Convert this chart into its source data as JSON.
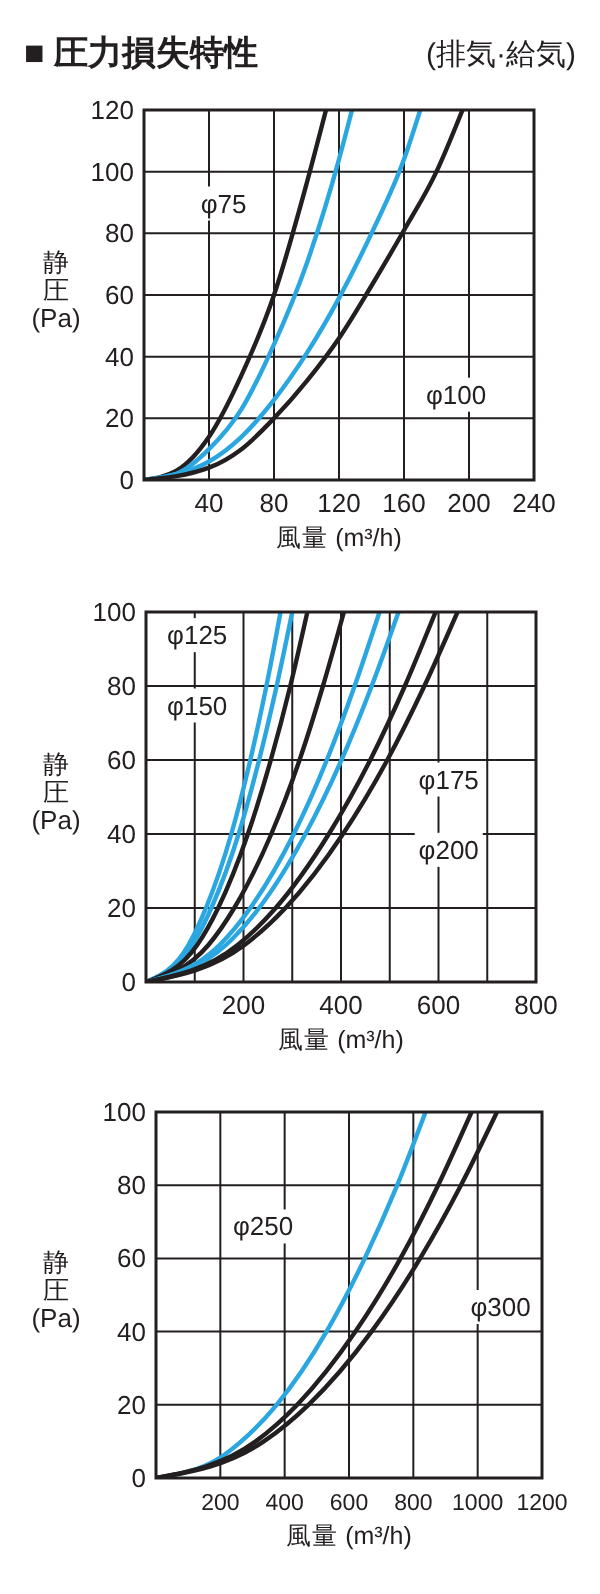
{
  "chart_data": [
    {
      "type": "line",
      "title": "■ 圧力損失特性",
      "subtitle": "(排気·給気)",
      "xlabel": "風量 (m³/h)",
      "ylabel": "静圧(Pa)",
      "xlim": [
        0,
        240
      ],
      "ylim": [
        0,
        120
      ],
      "xticks": [
        40,
        80,
        120,
        160,
        200,
        240
      ],
      "yticks": [
        0,
        20,
        40,
        60,
        80,
        100,
        120
      ],
      "grid": true,
      "marker": "none",
      "series": [
        {
          "color": "#231f20",
          "x": [
            0,
            20,
            40,
            60,
            80,
            100,
            112
          ],
          "values": [
            0,
            3,
            14,
            34,
            60,
            96,
            120
          ]
        },
        {
          "color": "#2aa6e0",
          "x": [
            0,
            20,
            40,
            60,
            80,
            100,
            120,
            128
          ],
          "values": [
            0,
            2,
            10,
            23,
            44,
            70,
            104,
            120
          ]
        },
        {
          "color": "#2aa6e0",
          "x": [
            0,
            40,
            60,
            80,
            100,
            120,
            140,
            160,
            170
          ],
          "values": [
            0,
            6,
            14,
            26,
            41,
            59,
            80,
            104,
            120
          ]
        },
        {
          "color": "#231f20",
          "x": [
            0,
            40,
            60,
            80,
            100,
            120,
            140,
            160,
            180,
            196
          ],
          "values": [
            0,
            4,
            10,
            20,
            32,
            46,
            63,
            81,
            100,
            120
          ]
        }
      ],
      "annotations": [
        {
          "text": "φ75",
          "x": 49,
          "y": 90
        },
        {
          "text": "φ100",
          "x": 192,
          "y": 28
        }
      ]
    },
    {
      "type": "line",
      "xlabel": "風量 (m³/h)",
      "ylabel": "静圧(Pa)",
      "xlim": [
        0,
        800
      ],
      "ylim": [
        0,
        100
      ],
      "xticks": [
        {
          "value": 100,
          "label": null
        },
        200,
        {
          "value": 300,
          "label": null
        },
        400,
        {
          "value": 500,
          "label": null
        },
        600,
        {
          "value": 700,
          "label": null
        },
        800
      ],
      "yticks": [
        0,
        20,
        40,
        60,
        80,
        100
      ],
      "grid": true,
      "marker": "none",
      "series": [
        {
          "color": "#2aa6e0",
          "x": [
            0,
            87,
            123,
            175,
            214,
            247,
            276
          ],
          "values": [
            0,
            10,
            20,
            40,
            60,
            80,
            100
          ]
        },
        {
          "color": "#2aa6e0",
          "x": [
            0,
            95,
            134,
            190,
            232,
            268,
            300
          ],
          "values": [
            0,
            10,
            20,
            40,
            60,
            80,
            100
          ]
        },
        {
          "color": "#231f20",
          "x": [
            0,
            105,
            148,
            209,
            256,
            296,
            331
          ],
          "values": [
            0,
            10,
            20,
            40,
            60,
            80,
            100
          ]
        },
        {
          "color": "#231f20",
          "x": [
            0,
            128,
            181,
            257,
            315,
            363,
            406
          ],
          "values": [
            0,
            10,
            20,
            40,
            60,
            80,
            100
          ]
        },
        {
          "color": "#2aa6e0",
          "x": [
            0,
            151,
            214,
            303,
            371,
            428,
            479
          ],
          "values": [
            0,
            10,
            20,
            40,
            60,
            80,
            100
          ]
        },
        {
          "color": "#2aa6e0",
          "x": [
            0,
            164,
            232,
            327,
            401,
            463,
            518
          ],
          "values": [
            0,
            10,
            20,
            40,
            60,
            80,
            100
          ]
        },
        {
          "color": "#231f20",
          "x": [
            0,
            188,
            266,
            375,
            460,
            531,
            594
          ],
          "values": [
            0,
            10,
            20,
            40,
            60,
            80,
            100
          ]
        },
        {
          "color": "#231f20",
          "x": [
            0,
            202,
            286,
            404,
            495,
            571,
            639
          ],
          "values": [
            0,
            10,
            20,
            40,
            60,
            80,
            100
          ]
        }
      ],
      "annotations": [
        {
          "text": "φ125",
          "x": 105,
          "y": 94
        },
        {
          "text": "φ150",
          "x": 105,
          "y": 75
        },
        {
          "text": "φ175",
          "x": 621,
          "y": 55
        },
        {
          "text": "φ200",
          "x": 621,
          "y": 36
        }
      ]
    },
    {
      "type": "line",
      "xlabel": "風量 (m³/h)",
      "ylabel": "静圧(Pa)",
      "xlim": [
        0,
        1200
      ],
      "ylim": [
        0,
        100
      ],
      "xticks": [
        200,
        400,
        600,
        800,
        1000,
        1200
      ],
      "yticks": [
        0,
        20,
        40,
        60,
        80,
        100
      ],
      "grid": true,
      "marker": "none",
      "series": [
        {
          "color": "#2aa6e0",
          "x": [
            0,
            200,
            265,
            375,
            530,
            649,
            750,
            838
          ],
          "values": [
            0,
            5.6,
            10,
            20,
            40,
            60,
            80,
            100
          ]
        },
        {
          "color": "#231f20",
          "x": [
            0,
            310,
            439,
            620,
            760,
            877,
            981
          ],
          "values": [
            0,
            10,
            20,
            40,
            60,
            80,
            100
          ]
        },
        {
          "color": "#231f20",
          "x": [
            0,
            335,
            474,
            670,
            821,
            948,
            1060
          ],
          "values": [
            0,
            10,
            20,
            40,
            60,
            80,
            100
          ]
        }
      ],
      "annotations": [
        {
          "text": "φ250",
          "x": 333,
          "y": 69
        },
        {
          "text": "φ300",
          "x": 1071,
          "y": 47
        }
      ]
    }
  ]
}
